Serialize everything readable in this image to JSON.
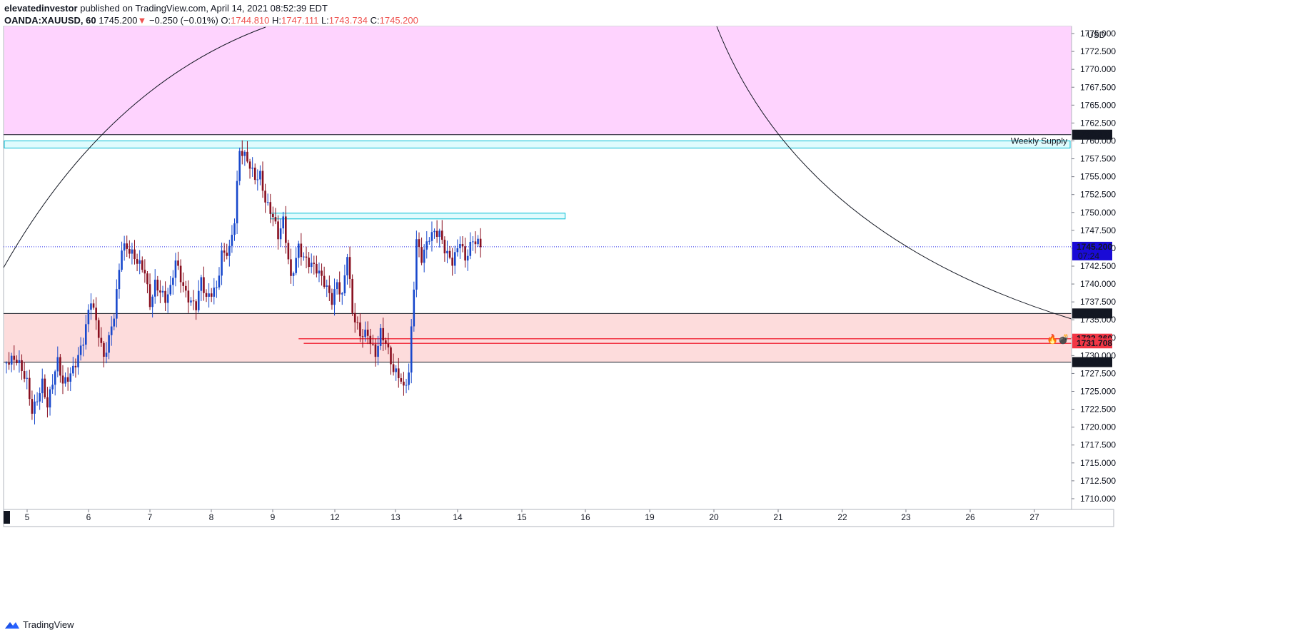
{
  "header": {
    "publisher": "elevatedinvestor",
    "published_text": "published on TradingView.com, April 14, 2021 08:52:39 EDT",
    "symbol": "OANDA:XAUUSD, 60",
    "last": "1745.200",
    "change": "−0.250 (−0.01%)",
    "o_label": "O:",
    "o_value": "1744.810",
    "h_label": "H:",
    "h_value": "1747.111",
    "l_label": "L:",
    "l_value": "1743.734",
    "c_label": "C:",
    "c_value": "1745.200"
  },
  "footer": {
    "brand": "TradingView",
    "icon": "tradingview-logo-icon"
  },
  "colors": {
    "up": "#1848cc",
    "down": "#880e1e",
    "supply_zone": "#fed3fe",
    "demand_zone": "#fddcdc",
    "cyan": "#00bcd4",
    "red_line": "#f23645",
    "price_badge": "#1a0bd6",
    "badge_red": "#f23645",
    "badge_black": "#131722"
  },
  "chart_data": {
    "type": "candlestick",
    "currency": "USD",
    "ylim": [
      1708.5,
      1776
    ],
    "y_ticks": [
      1710,
      1712.5,
      1715,
      1717.5,
      1720,
      1722.5,
      1725,
      1727.5,
      1730,
      1732.5,
      1735,
      1737.5,
      1740,
      1742.5,
      1745,
      1747.5,
      1750,
      1752.5,
      1755,
      1757.5,
      1760,
      1762.5,
      1765,
      1767.5,
      1770,
      1772.5,
      1775
    ],
    "y_tick_labels": [
      "1710.000",
      "1712.500",
      "1715.000",
      "1717.500",
      "1720.000",
      "1722.500",
      "1725.000",
      "1727.500",
      "1730.000",
      "1732.500",
      "1735.000",
      "1737.500",
      "1740.000",
      "1742.500",
      "1745.000",
      "1747.500",
      "1750.000",
      "1752.500",
      "1755.000",
      "1757.500",
      "1760.000",
      "1762.500",
      "1765.000",
      "1767.500",
      "1770.000",
      "1772.500",
      "1775.000"
    ],
    "x_labels": [
      "5",
      "6",
      "7",
      "8",
      "9",
      "12",
      "13",
      "14",
      "15",
      "16",
      "19",
      "20",
      "21",
      "22",
      "23",
      "26",
      "27"
    ],
    "x_label_slots": [
      7,
      31,
      55,
      79,
      103,
      127,
      151,
      175,
      199,
      223,
      247,
      271,
      295,
      319,
      343,
      367,
      391
    ],
    "x_axis_start_label": "0",
    "candle_count": 186,
    "anchors": [
      [
        0,
        1729.0
      ],
      [
        4,
        1728.5
      ],
      [
        8,
        1726.5
      ],
      [
        10,
        1723.0
      ],
      [
        14,
        1726.5
      ],
      [
        16,
        1722.5
      ],
      [
        20,
        1728.5
      ],
      [
        22,
        1726.0
      ],
      [
        26,
        1729.0
      ],
      [
        30,
        1732.0
      ],
      [
        33,
        1737.0
      ],
      [
        35,
        1734.0
      ],
      [
        38,
        1730.0
      ],
      [
        42,
        1736.5
      ],
      [
        45,
        1745.0
      ],
      [
        50,
        1743.0
      ],
      [
        54,
        1742.5
      ],
      [
        56,
        1738.0
      ],
      [
        58,
        1740.5
      ],
      [
        62,
        1737.0
      ],
      [
        64,
        1738.5
      ],
      [
        66,
        1743.0
      ],
      [
        70,
        1739.5
      ],
      [
        74,
        1737.0
      ],
      [
        76,
        1740.0
      ],
      [
        78,
        1737.0
      ],
      [
        82,
        1739.5
      ],
      [
        84,
        1745.0
      ],
      [
        87,
        1745.5
      ],
      [
        89,
        1749.0
      ],
      [
        91,
        1758.0
      ],
      [
        94,
        1756.5
      ],
      [
        97,
        1755.0
      ],
      [
        99,
        1756.0
      ],
      [
        101,
        1752.5
      ],
      [
        104,
        1749.5
      ],
      [
        106,
        1746.0
      ],
      [
        108,
        1748.0
      ],
      [
        111,
        1740.5
      ],
      [
        114,
        1746.0
      ],
      [
        116,
        1744.5
      ],
      [
        120,
        1742.0
      ],
      [
        123,
        1740.0
      ],
      [
        127,
        1738.0
      ],
      [
        129,
        1741.0
      ],
      [
        131,
        1739.0
      ],
      [
        133,
        1744.5
      ],
      [
        135,
        1735.5
      ],
      [
        138,
        1732.0
      ],
      [
        141,
        1733.0
      ],
      [
        144,
        1731.0
      ],
      [
        146,
        1734.0
      ],
      [
        148,
        1732.0
      ],
      [
        151,
        1727.0
      ],
      [
        153,
        1726.5
      ],
      [
        155,
        1725.0
      ],
      [
        157,
        1728.0
      ],
      [
        160,
        1747.0
      ],
      [
        162,
        1744.0
      ],
      [
        165,
        1746.0
      ],
      [
        169,
        1746.5
      ],
      [
        171,
        1745.0
      ],
      [
        174,
        1744.0
      ],
      [
        177,
        1746.5
      ],
      [
        179,
        1743.0
      ],
      [
        182,
        1745.2
      ],
      [
        183,
        1745.2
      ]
    ],
    "zones": [
      {
        "name": "supply-zone",
        "top": 1776,
        "bottom": 1760.871
      },
      {
        "name": "demand-zone",
        "top": 1735.887,
        "bottom": 1729.09
      }
    ],
    "levels": [
      {
        "label": "1760.871",
        "value": 1760.871
      },
      {
        "label": "1745.200",
        "value": 1745.2
      },
      {
        "label": "1735.887",
        "value": 1735.887
      },
      {
        "label": "1732.360",
        "value": 1732.36
      },
      {
        "label": "1731.708",
        "value": 1731.708
      },
      {
        "label": "1729.090",
        "value": 1729.09
      }
    ],
    "countdown": "07:24",
    "weekly_supply": {
      "label": "Weekly Supply",
      "top": 1760.0,
      "bottom": 1759.0
    },
    "resistance_box": {
      "top": 1749.9,
      "bottom": 1749.1,
      "from_candle": 103,
      "to_candle": 218
    }
  }
}
